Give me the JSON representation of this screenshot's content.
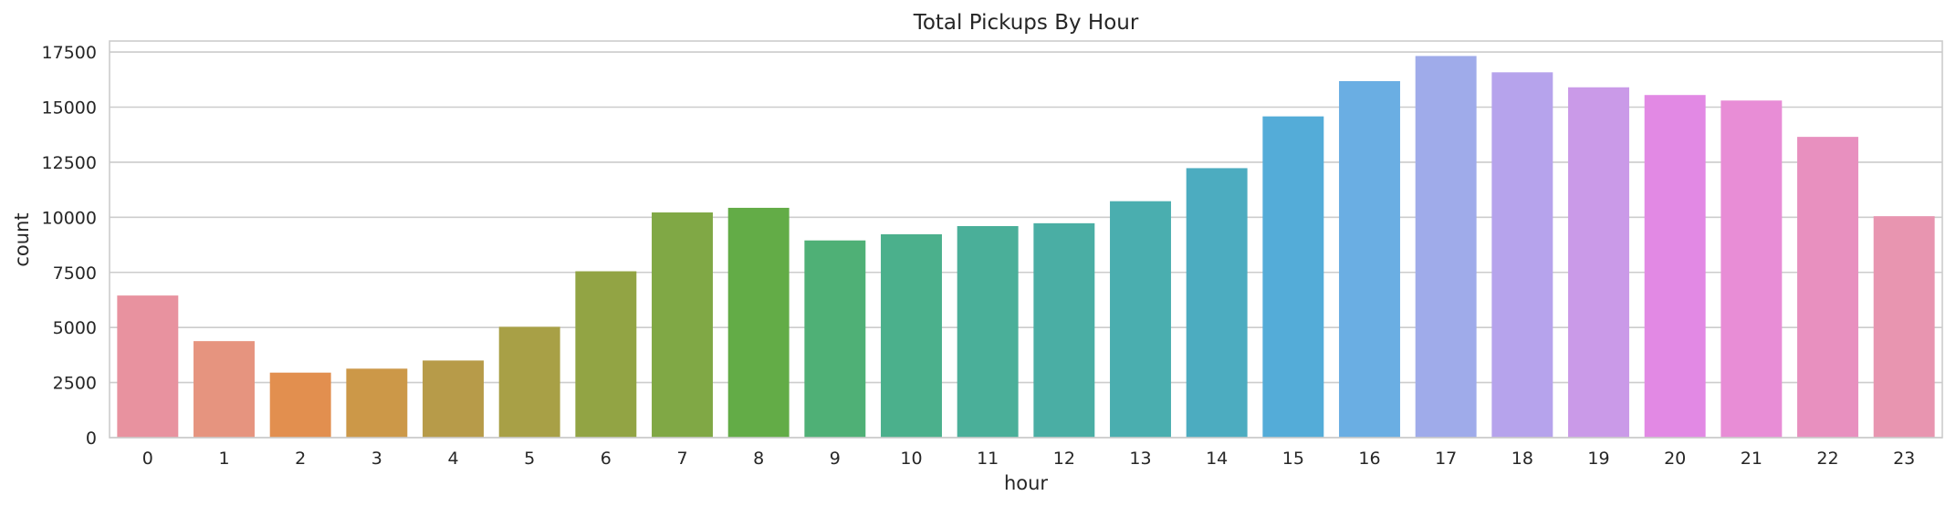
{
  "chart_data": {
    "type": "bar",
    "title": "Total Pickups By Hour",
    "xlabel": "hour",
    "ylabel": "count",
    "categories": [
      "0",
      "1",
      "2",
      "3",
      "4",
      "5",
      "6",
      "7",
      "8",
      "9",
      "10",
      "11",
      "12",
      "13",
      "14",
      "15",
      "16",
      "17",
      "18",
      "19",
      "20",
      "21",
      "22",
      "23"
    ],
    "values": [
      6450,
      4380,
      2950,
      3130,
      3500,
      5030,
      7550,
      10220,
      10430,
      8950,
      9230,
      9600,
      9730,
      10730,
      12230,
      14580,
      16180,
      17320,
      16580,
      15900,
      15550,
      15300,
      13650,
      10050
    ],
    "colors": [
      "#e8929f",
      "#e6947f",
      "#e28f4f",
      "#cc9848",
      "#b79b49",
      "#a8a046",
      "#92a444",
      "#80a845",
      "#63ac47",
      "#4fb076",
      "#4bb08c",
      "#4aaf99",
      "#4aaea4",
      "#4aaeaf",
      "#4cacc0",
      "#54acd8",
      "#6aaee3",
      "#9fabea",
      "#b6a3ec",
      "#ca9ae8",
      "#e289e4",
      "#e88dd6",
      "#e890bf",
      "#e895b0"
    ],
    "ylim": [
      0,
      18000
    ],
    "yticks": [
      0,
      2500,
      5000,
      7500,
      10000,
      12500,
      15000,
      17500
    ],
    "grid": "horizontal"
  }
}
